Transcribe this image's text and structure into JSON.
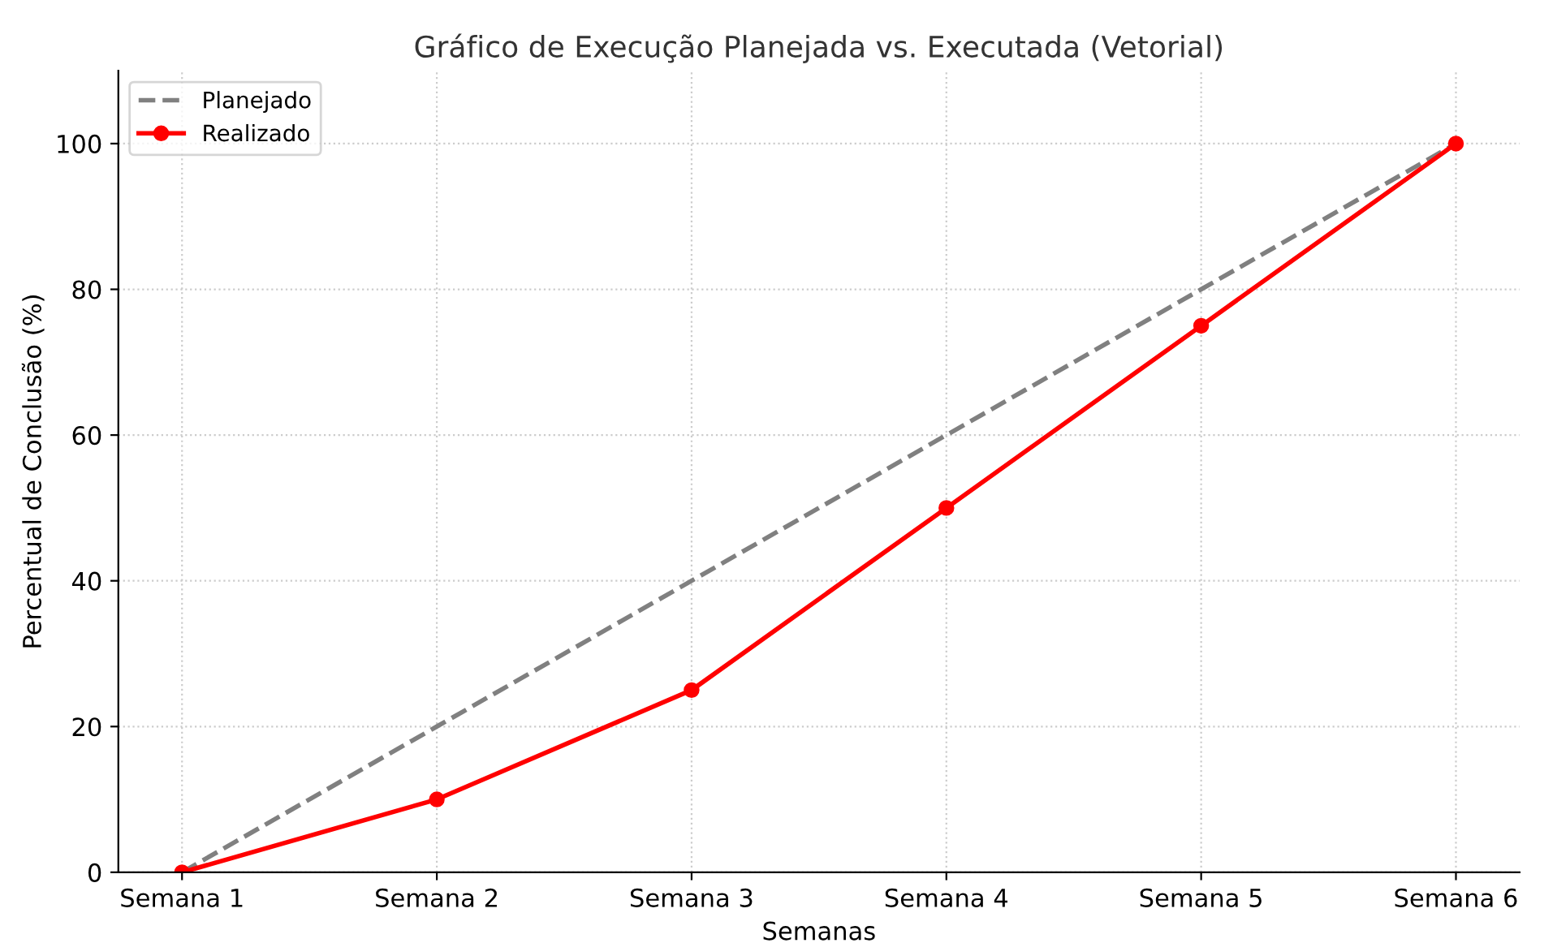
{
  "chart_data": {
    "type": "line",
    "title": "Gráfico de Execução Planejada vs. Executada (Vetorial)",
    "xlabel": "Semanas",
    "ylabel": "Percentual de Conclusão (%)",
    "categories": [
      "Semana 1",
      "Semana 2",
      "Semana 3",
      "Semana 4",
      "Semana 5",
      "Semana 6"
    ],
    "series": [
      {
        "name": "Planejado",
        "color": "#808080",
        "values": [
          0,
          20,
          40,
          60,
          80,
          100
        ],
        "line_style": "dashed",
        "marker": "none"
      },
      {
        "name": "Realizado",
        "color": "#ff0000",
        "values": [
          0,
          10,
          25,
          50,
          75,
          100
        ],
        "line_style": "solid",
        "marker": "circle"
      }
    ],
    "ylim": [
      0,
      110
    ],
    "yticks": [
      0,
      20,
      40,
      60,
      80,
      100
    ],
    "grid": true,
    "legend": "top left"
  }
}
